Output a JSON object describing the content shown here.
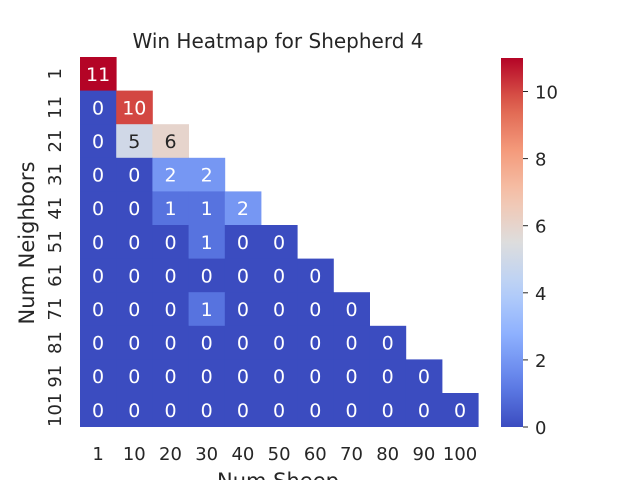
{
  "chart_data": {
    "type": "heatmap",
    "title": "Win Heatmap for Shepherd 4",
    "xlabel": "Num Sheep",
    "ylabel": "Num Neighbors",
    "x_categories": [
      "1",
      "10",
      "20",
      "30",
      "40",
      "50",
      "60",
      "70",
      "80",
      "90",
      "100"
    ],
    "y_categories": [
      "1",
      "11",
      "21",
      "31",
      "41",
      "51",
      "61",
      "71",
      "81",
      "91",
      "101"
    ],
    "values": [
      [
        11,
        null,
        null,
        null,
        null,
        null,
        null,
        null,
        null,
        null,
        null
      ],
      [
        0,
        10,
        null,
        null,
        null,
        null,
        null,
        null,
        null,
        null,
        null
      ],
      [
        0,
        5,
        6,
        null,
        null,
        null,
        null,
        null,
        null,
        null,
        null
      ],
      [
        0,
        0,
        2,
        2,
        null,
        null,
        null,
        null,
        null,
        null,
        null
      ],
      [
        0,
        0,
        1,
        1,
        2,
        null,
        null,
        null,
        null,
        null,
        null
      ],
      [
        0,
        0,
        0,
        1,
        0,
        0,
        null,
        null,
        null,
        null,
        null
      ],
      [
        0,
        0,
        0,
        0,
        0,
        0,
        0,
        null,
        null,
        null,
        null
      ],
      [
        0,
        0,
        0,
        1,
        0,
        0,
        0,
        0,
        null,
        null,
        null
      ],
      [
        0,
        0,
        0,
        0,
        0,
        0,
        0,
        0,
        0,
        null,
        null
      ],
      [
        0,
        0,
        0,
        0,
        0,
        0,
        0,
        0,
        0,
        0,
        null
      ],
      [
        0,
        0,
        0,
        0,
        0,
        0,
        0,
        0,
        0,
        0,
        0
      ]
    ],
    "colormap": "coolwarm",
    "vmin": 0,
    "vmax": 11,
    "colorbar_ticks": [
      "0",
      "2",
      "4",
      "6",
      "8",
      "10"
    ],
    "annotated": true,
    "grid": false
  }
}
